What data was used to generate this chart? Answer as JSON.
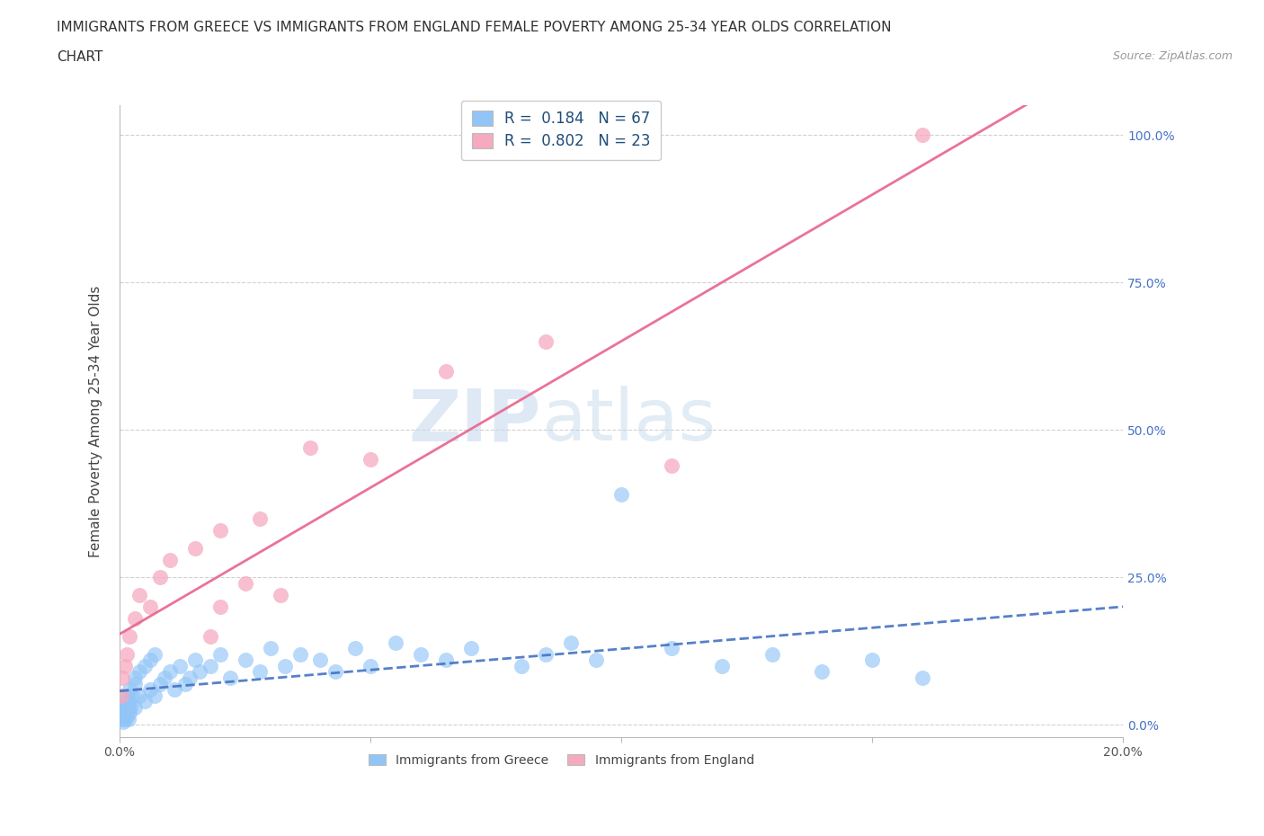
{
  "title_line1": "IMMIGRANTS FROM GREECE VS IMMIGRANTS FROM ENGLAND FEMALE POVERTY AMONG 25-34 YEAR OLDS CORRELATION",
  "title_line2": "CHART",
  "source_text": "Source: ZipAtlas.com",
  "ylabel": "Female Poverty Among 25-34 Year Olds",
  "xlim": [
    0,
    0.2
  ],
  "ylim": [
    -0.02,
    1.05
  ],
  "ytick_vals": [
    0.0,
    0.25,
    0.5,
    0.75,
    1.0
  ],
  "ytick_labels_right": [
    "0.0%",
    "25.0%",
    "50.0%",
    "75.0%",
    "100.0%"
  ],
  "xtick_vals": [
    0.0,
    0.05,
    0.1,
    0.15,
    0.2
  ],
  "xtick_labels": [
    "0.0%",
    "",
    "",
    "",
    "20.0%"
  ],
  "watermark_zip": "ZIP",
  "watermark_atlas": "atlas",
  "color_greece": "#92C5F7",
  "color_england": "#F5AABF",
  "line_color_greece": "#4472C4",
  "line_color_england": "#E8648C",
  "title_fontsize": 11,
  "axis_label_fontsize": 11,
  "tick_fontsize": 10,
  "legend_fontsize": 12,
  "greece_x": [
    0.0003,
    0.0005,
    0.0006,
    0.0007,
    0.0008,
    0.0009,
    0.001,
    0.001,
    0.0012,
    0.0013,
    0.0014,
    0.0015,
    0.0016,
    0.0017,
    0.0018,
    0.002,
    0.002,
    0.002,
    0.0022,
    0.0025,
    0.003,
    0.003,
    0.003,
    0.004,
    0.004,
    0.005,
    0.005,
    0.006,
    0.006,
    0.007,
    0.007,
    0.008,
    0.009,
    0.01,
    0.011,
    0.012,
    0.013,
    0.014,
    0.015,
    0.016,
    0.018,
    0.02,
    0.022,
    0.025,
    0.028,
    0.03,
    0.033,
    0.036,
    0.04,
    0.043,
    0.047,
    0.05,
    0.055,
    0.06,
    0.065,
    0.07,
    0.08,
    0.085,
    0.09,
    0.095,
    0.1,
    0.11,
    0.12,
    0.13,
    0.14,
    0.15,
    0.16
  ],
  "greece_y": [
    0.02,
    0.01,
    0.03,
    0.005,
    0.015,
    0.02,
    0.04,
    0.01,
    0.03,
    0.02,
    0.015,
    0.05,
    0.025,
    0.01,
    0.03,
    0.06,
    0.02,
    0.04,
    0.03,
    0.05,
    0.07,
    0.03,
    0.08,
    0.05,
    0.09,
    0.04,
    0.1,
    0.06,
    0.11,
    0.05,
    0.12,
    0.07,
    0.08,
    0.09,
    0.06,
    0.1,
    0.07,
    0.08,
    0.11,
    0.09,
    0.1,
    0.12,
    0.08,
    0.11,
    0.09,
    0.13,
    0.1,
    0.12,
    0.11,
    0.09,
    0.13,
    0.1,
    0.14,
    0.12,
    0.11,
    0.13,
    0.1,
    0.12,
    0.14,
    0.11,
    0.39,
    0.13,
    0.1,
    0.12,
    0.09,
    0.11,
    0.08
  ],
  "england_x": [
    0.0003,
    0.0006,
    0.001,
    0.0015,
    0.002,
    0.003,
    0.004,
    0.006,
    0.008,
    0.01,
    0.015,
    0.02,
    0.028,
    0.038,
    0.05,
    0.065,
    0.085,
    0.032,
    0.11,
    0.02,
    0.025,
    0.018,
    0.16
  ],
  "england_y": [
    0.05,
    0.08,
    0.1,
    0.12,
    0.15,
    0.18,
    0.22,
    0.2,
    0.25,
    0.28,
    0.3,
    0.2,
    0.35,
    0.47,
    0.45,
    0.6,
    0.65,
    0.22,
    0.44,
    0.33,
    0.24,
    0.15,
    1.0
  ]
}
